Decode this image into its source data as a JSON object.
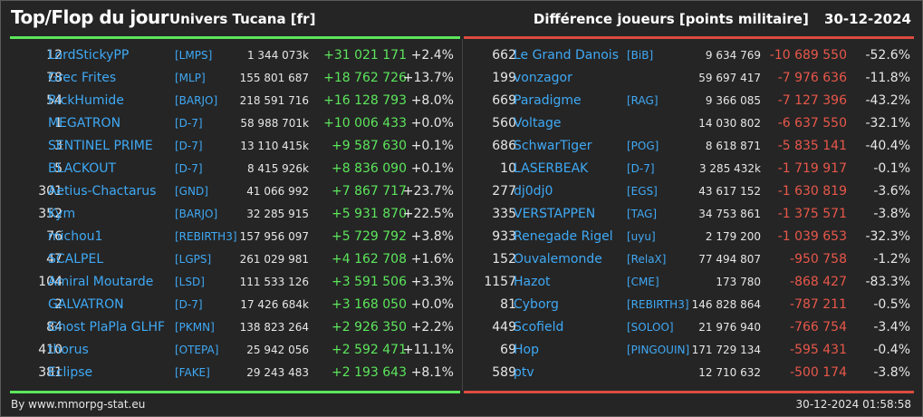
{
  "header": {
    "title": "Top/Flop du jour",
    "universe": "Univers Tucana [fr]",
    "subtitle": "Différence joueurs [points militaire]",
    "date": "30-12-2024"
  },
  "colors": {
    "top": "#5ce65c",
    "flop": "#dc4b3f",
    "name": "#3fa9f5"
  },
  "top": [
    {
      "rank": "12",
      "name": "LordStickyPP",
      "alliance": "[LMPS]",
      "points": "1 344 073k",
      "diff": "+31 021 171",
      "pct": "+2.4%"
    },
    {
      "rank": "78",
      "name": "Grec Frites",
      "alliance": "[MLP]",
      "points": "155 801 687",
      "diff": "+18 762 726",
      "pct": "+13.7%"
    },
    {
      "rank": "54",
      "name": "RickHumide",
      "alliance": "[BARJO]",
      "points": "218 591 716",
      "diff": "+16 128 793",
      "pct": "+8.0%"
    },
    {
      "rank": "1",
      "name": "MEGATRON",
      "alliance": "[D-7]",
      "points": "58 988 701k",
      "diff": "+10 006 433",
      "pct": "+0.0%"
    },
    {
      "rank": "3",
      "name": "SENTINEL PRIME",
      "alliance": "[D-7]",
      "points": "13 110 415k",
      "diff": "+9 587 630",
      "pct": "+0.1%"
    },
    {
      "rank": "5",
      "name": "BLACKOUT",
      "alliance": "[D-7]",
      "points": "8 415 926k",
      "diff": "+8 836 090",
      "pct": "+0.1%"
    },
    {
      "rank": "301",
      "name": "Aetius-Chactarus",
      "alliance": "[GND]",
      "points": "41 066 992",
      "diff": "+7 867 717",
      "pct": "+23.7%"
    },
    {
      "rank": "352",
      "name": "Kym",
      "alliance": "[BARJO]",
      "points": "32 285 915",
      "diff": "+5 931 870",
      "pct": "+22.5%"
    },
    {
      "rank": "76",
      "name": "michou1",
      "alliance": "[REBIRTH3]",
      "points": "157 956 097",
      "diff": "+5 729 792",
      "pct": "+3.8%"
    },
    {
      "rank": "47",
      "name": "SCALPEL",
      "alliance": "[LGPS]",
      "points": "261 029 981",
      "diff": "+4 162 708",
      "pct": "+1.6%"
    },
    {
      "rank": "104",
      "name": "Amiral Moutarde",
      "alliance": "[LSD]",
      "points": "111 533 126",
      "diff": "+3 591 506",
      "pct": "+3.3%"
    },
    {
      "rank": "2",
      "name": "GALVATRON",
      "alliance": "[D-7]",
      "points": "17 426 684k",
      "diff": "+3 168 050",
      "pct": "+0.0%"
    },
    {
      "rank": "84",
      "name": "Ghost PlaPla GLHF",
      "alliance": "[PKMN]",
      "points": "138 823 264",
      "diff": "+2 926 350",
      "pct": "+2.2%"
    },
    {
      "rank": "410",
      "name": "thorus",
      "alliance": "[OTEPA]",
      "points": "25 942 056",
      "diff": "+2 592 471",
      "pct": "+11.1%"
    },
    {
      "rank": "381",
      "name": "Eclipse",
      "alliance": "[FAKE]",
      "points": "29 243 483",
      "diff": "+2 193 643",
      "pct": "+8.1%"
    }
  ],
  "flop": [
    {
      "rank": "662",
      "name": "Le Grand Danois",
      "alliance": "[BiB]",
      "points": "9 634 769",
      "diff": "-10 689 550",
      "pct": "-52.6%"
    },
    {
      "rank": "199",
      "name": "vonzagor",
      "alliance": "",
      "points": "59 697 417",
      "diff": "-7 976 636",
      "pct": "-11.8%"
    },
    {
      "rank": "669",
      "name": "Paradigme",
      "alliance": "[RAG]",
      "points": "9 366 085",
      "diff": "-7 127 396",
      "pct": "-43.2%"
    },
    {
      "rank": "560",
      "name": "Voltage",
      "alliance": "",
      "points": "14 030 802",
      "diff": "-6 637 550",
      "pct": "-32.1%"
    },
    {
      "rank": "686",
      "name": "SchwarTiger",
      "alliance": "[POG]",
      "points": "8 618 871",
      "diff": "-5 835 141",
      "pct": "-40.4%"
    },
    {
      "rank": "10",
      "name": "LASERBEAK",
      "alliance": "[D-7]",
      "points": "3 285 432k",
      "diff": "-1 719 917",
      "pct": "-0.1%"
    },
    {
      "rank": "277",
      "name": "dj0dj0",
      "alliance": "[EGS]",
      "points": "43 617 152",
      "diff": "-1 630 819",
      "pct": "-3.6%"
    },
    {
      "rank": "335",
      "name": "VERSTAPPEN",
      "alliance": "[TAG]",
      "points": "34 753 861",
      "diff": "-1 375 571",
      "pct": "-3.8%"
    },
    {
      "rank": "933",
      "name": "Renegade Rigel",
      "alliance": "[uyu]",
      "points": "2 179 200",
      "diff": "-1 039 653",
      "pct": "-32.3%"
    },
    {
      "rank": "152",
      "name": "Ouvalemonde",
      "alliance": "[RelaX]",
      "points": "77 494 807",
      "diff": "-950 758",
      "pct": "-1.2%"
    },
    {
      "rank": "1157",
      "name": "Hazot",
      "alliance": "[CME]",
      "points": "173 780",
      "diff": "-868 427",
      "pct": "-83.3%"
    },
    {
      "rank": "81",
      "name": "Cyborg",
      "alliance": "[REBIRTH3]",
      "points": "146 828 864",
      "diff": "-787 211",
      "pct": "-0.5%"
    },
    {
      "rank": "449",
      "name": "Scofield",
      "alliance": "[SOLOO]",
      "points": "21 976 940",
      "diff": "-766 754",
      "pct": "-3.4%"
    },
    {
      "rank": "69",
      "name": "Hop",
      "alliance": "[PINGOUIN]",
      "points": "171 729 134",
      "diff": "-595 431",
      "pct": "-0.4%"
    },
    {
      "rank": "589",
      "name": "ptv",
      "alliance": "",
      "points": "12 710 632",
      "diff": "-500 174",
      "pct": "-3.8%"
    }
  ],
  "footer": {
    "source": "By www.mmorpg-stat.eu",
    "timestamp": "30-12-2024 01:58:58"
  }
}
